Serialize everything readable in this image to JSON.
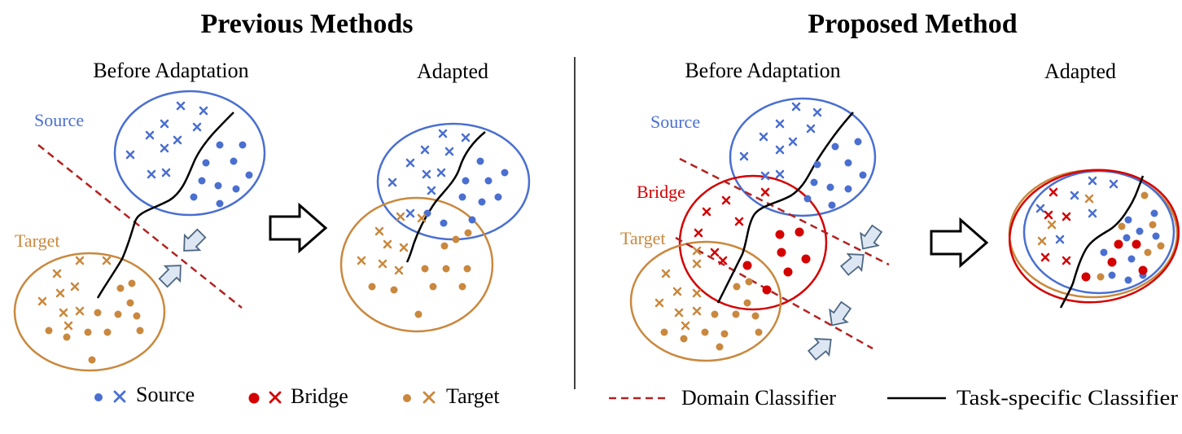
{
  "colors": {
    "source": "#4a6fd0",
    "bridge": "#d40000",
    "target": "#c9883e",
    "domain_classifier": "#b22222",
    "task_classifier": "#000000",
    "arrow_fill": "#dde7f3",
    "arrow_stroke": "#4d6682"
  },
  "previous": {
    "title": "Previous Methods",
    "before_title": "Before Adaptation",
    "adapted_title": "Adapted",
    "source_label": "Source",
    "target_label": "Target"
  },
  "proposed": {
    "title": "Proposed Method",
    "before_title": "Before Adaptation",
    "adapted_title": "Adapted",
    "source_label": "Source",
    "bridge_label": "Bridge",
    "target_label": "Target"
  },
  "legend": {
    "source": "Source",
    "bridge": "Bridge",
    "target": "Target",
    "domain_classifier": "Domain Classifier",
    "task_classifier": "Task-specific Classifier"
  }
}
